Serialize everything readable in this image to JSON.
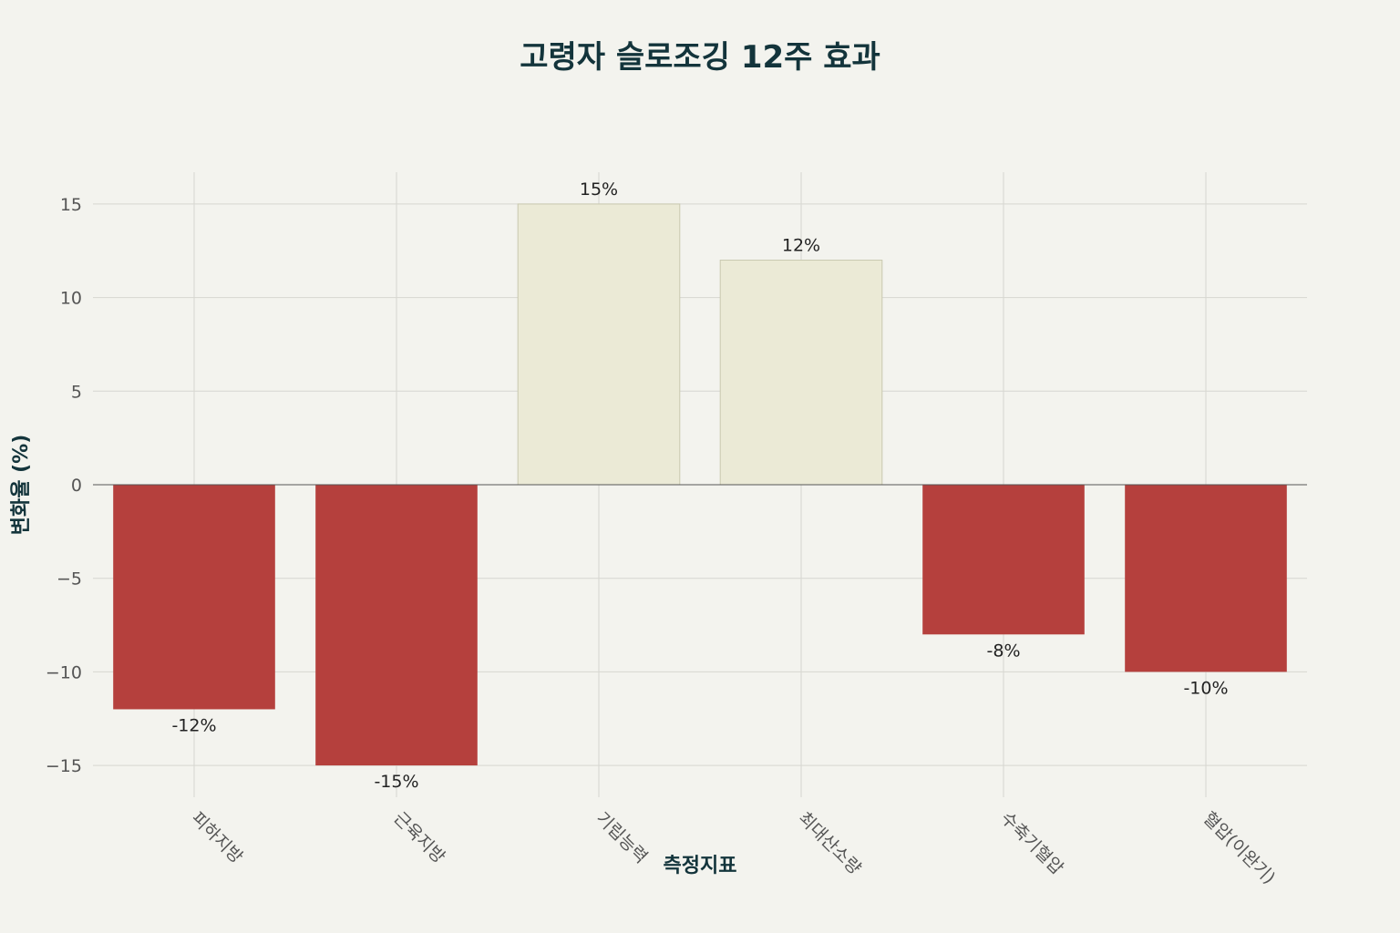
{
  "chart_data": {
    "type": "bar",
    "title": "고령자 슬로조깅 12주 효과",
    "xlabel": "측정지표",
    "ylabel": "변화율 (%)",
    "categories": [
      "피하지방",
      "근육지방",
      "기립능력",
      "최대산소량",
      "수축기혈압",
      "혈압(이완기)"
    ],
    "values": [
      -12,
      -15,
      15,
      12,
      -8,
      -10
    ],
    "data_labels": [
      "-12%",
      "-15%",
      "15%",
      "12%",
      "-8%",
      "-10%"
    ],
    "ylim": [
      -16.7,
      16.7
    ],
    "yticks": [
      -15,
      -10,
      -5,
      0,
      5,
      10,
      15
    ],
    "ytick_labels": [
      "−15",
      "−10",
      "−5",
      "0",
      "5",
      "10",
      "15"
    ],
    "grid": true,
    "colors": {
      "negative": "#b5403d",
      "positive": "#ebead6",
      "positive_stroke": "#c9c9b0"
    }
  }
}
